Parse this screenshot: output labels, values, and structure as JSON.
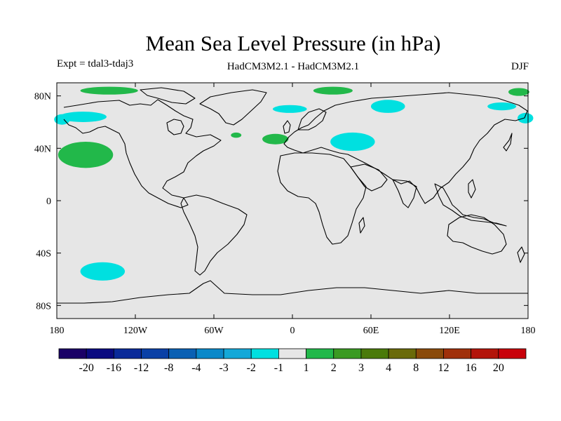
{
  "header": {
    "title": "Mean Sea Level Pressure (in hPa)",
    "experiment": "Expt = tdal3-tdaj3",
    "model": "HadCM3M2.1 - HadCM3M2.1",
    "season": "DJF"
  },
  "map": {
    "projection": "cylindrical-equidistant",
    "lon_range": [
      -180,
      180
    ],
    "lat_range": [
      -90,
      90
    ],
    "background_color": "#e6e6e6",
    "coastline_color": "#000000",
    "x_ticks": [
      {
        "lon": -180,
        "label": "180"
      },
      {
        "lon": -120,
        "label": "120W"
      },
      {
        "lon": -60,
        "label": "60W"
      },
      {
        "lon": 0,
        "label": "0"
      },
      {
        "lon": 60,
        "label": "60E"
      },
      {
        "lon": 120,
        "label": "120E"
      },
      {
        "lon": 180,
        "label": "180"
      }
    ],
    "y_ticks": [
      {
        "lat": 80,
        "label": "80N"
      },
      {
        "lat": 40,
        "label": "40N"
      },
      {
        "lat": 0,
        "label": "0"
      },
      {
        "lat": -40,
        "label": "40S"
      },
      {
        "lat": -80,
        "label": "80S"
      }
    ]
  },
  "anomaly_regions": [
    {
      "sign": "positive",
      "color": "#22b84a",
      "lon": -158,
      "lat": 35,
      "rlon": 21,
      "rlat": 10
    },
    {
      "sign": "negative",
      "color": "#00e0e0",
      "lon": -145,
      "lat": -54,
      "rlon": 17,
      "rlat": 7
    },
    {
      "sign": "negative",
      "color": "#00e0e0",
      "lon": -160,
      "lat": 64,
      "rlon": 18,
      "rlat": 4
    },
    {
      "sign": "negative",
      "color": "#00e0e0",
      "lon": -176,
      "lat": 62,
      "rlon": 6,
      "rlat": 4
    },
    {
      "sign": "positive",
      "color": "#22b84a",
      "lon": -140,
      "lat": 84,
      "rlon": 22,
      "rlat": 3
    },
    {
      "sign": "positive",
      "color": "#22b84a",
      "lon": -13,
      "lat": 47,
      "rlon": 10,
      "rlat": 4
    },
    {
      "sign": "positive",
      "color": "#22b84a",
      "lon": -43,
      "lat": 50,
      "rlon": 4,
      "rlat": 2
    },
    {
      "sign": "negative",
      "color": "#00e0e0",
      "lon": -2,
      "lat": 70,
      "rlon": 13,
      "rlat": 3
    },
    {
      "sign": "positive",
      "color": "#22b84a",
      "lon": 31,
      "lat": 84,
      "rlon": 15,
      "rlat": 3
    },
    {
      "sign": "negative",
      "color": "#00e0e0",
      "lon": 46,
      "lat": 45,
      "rlon": 17,
      "rlat": 7
    },
    {
      "sign": "negative",
      "color": "#00e0e0",
      "lon": 73,
      "lat": 72,
      "rlon": 13,
      "rlat": 5
    },
    {
      "sign": "negative",
      "color": "#00e0e0",
      "lon": 160,
      "lat": 72,
      "rlon": 11,
      "rlat": 3
    },
    {
      "sign": "positive",
      "color": "#22b84a",
      "lon": 173,
      "lat": 83,
      "rlon": 8,
      "rlat": 3
    },
    {
      "sign": "negative",
      "color": "#00e0e0",
      "lon": 178,
      "lat": 63,
      "rlon": 6,
      "rlat": 4
    }
  ],
  "colorbar": {
    "colors": [
      "#1a0066",
      "#0a0a80",
      "#0a2a99",
      "#0a40a6",
      "#0a60b3",
      "#0a88c9",
      "#14a8d8",
      "#00e0e0",
      "#e6e6e6",
      "#22b84a",
      "#3a9a22",
      "#4a7a0a",
      "#6a6a0a",
      "#8a4a0a",
      "#a0300a",
      "#b3140a",
      "#c8000a"
    ],
    "labels": [
      "-20",
      "-16",
      "-12",
      "-8",
      "-4",
      "-3",
      "-2",
      "-1",
      "1",
      "2",
      "3",
      "4",
      "8",
      "12",
      "16",
      "20"
    ]
  }
}
